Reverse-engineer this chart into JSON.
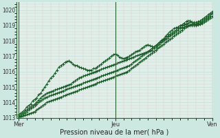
{
  "xlabel": "Pression niveau de la mer( hPa )",
  "bg_color": "#cce8e0",
  "plot_bg_color": "#dff0eb",
  "grid_color_minor": "#c8ddd8",
  "grid_color_major": "#aac8c0",
  "line_color": "#1a5c28",
  "marker_color": "#1a5c28",
  "axis_color": "#2a6030",
  "ylim": [
    1013,
    1020.5
  ],
  "yticks": [
    1013,
    1014,
    1015,
    1016,
    1017,
    1018,
    1019,
    1020
  ],
  "xtick_labels": [
    "Mer",
    "Jeu",
    "Ven"
  ],
  "xtick_positions": [
    0,
    48,
    96
  ],
  "vline_positions": [
    0,
    48,
    96
  ],
  "total_points": 97,
  "series": [
    [
      1013.2,
      1013.3,
      1013.4,
      1013.5,
      1013.7,
      1013.8,
      1013.9,
      1014.1,
      1014.2,
      1014.3,
      1014.5,
      1014.6,
      1014.8,
      1015.0,
      1015.2,
      1015.4,
      1015.6,
      1015.7,
      1015.9,
      1016.1,
      1016.3,
      1016.4,
      1016.5,
      1016.6,
      1016.65,
      1016.7,
      1016.6,
      1016.5,
      1016.4,
      1016.4,
      1016.3,
      1016.25,
      1016.2,
      1016.15,
      1016.1,
      1016.1,
      1016.1,
      1016.2,
      1016.2,
      1016.3,
      1016.4,
      1016.5,
      1016.6,
      1016.7,
      1016.8,
      1016.9,
      1017.0,
      1017.1,
      1017.15,
      1017.05,
      1016.95,
      1016.9,
      1016.85,
      1016.9,
      1016.95,
      1017.0,
      1017.1,
      1017.2,
      1017.3,
      1017.35,
      1017.4,
      1017.5,
      1017.6,
      1017.7,
      1017.75,
      1017.7,
      1017.65,
      1017.6,
      1017.7,
      1017.8,
      1017.9,
      1018.05,
      1018.15,
      1018.3,
      1018.45,
      1018.6,
      1018.7,
      1018.8,
      1018.85,
      1018.9,
      1019.0,
      1019.05,
      1019.15,
      1019.25,
      1019.3,
      1019.3,
      1019.2,
      1019.15,
      1019.1,
      1019.15,
      1019.1,
      1019.15,
      1019.2,
      1019.3,
      1019.4,
      1019.5,
      1019.6
    ],
    [
      1013.1,
      1013.2,
      1013.3,
      1013.4,
      1013.5,
      1013.6,
      1013.7,
      1013.8,
      1013.9,
      1014.0,
      1014.15,
      1014.3,
      1014.4,
      1014.5,
      1014.6,
      1014.65,
      1014.7,
      1014.75,
      1014.8,
      1014.85,
      1014.9,
      1014.95,
      1015.0,
      1015.05,
      1015.1,
      1015.15,
      1015.2,
      1015.3,
      1015.4,
      1015.5,
      1015.6,
      1015.65,
      1015.7,
      1015.75,
      1015.8,
      1015.85,
      1015.9,
      1015.95,
      1016.0,
      1016.05,
      1016.1,
      1016.15,
      1016.2,
      1016.25,
      1016.3,
      1016.35,
      1016.4,
      1016.45,
      1016.5,
      1016.55,
      1016.6,
      1016.65,
      1016.7,
      1016.75,
      1016.8,
      1016.85,
      1016.9,
      1016.95,
      1017.0,
      1017.05,
      1017.1,
      1017.15,
      1017.2,
      1017.25,
      1017.3,
      1017.35,
      1017.4,
      1017.5,
      1017.6,
      1017.7,
      1017.8,
      1017.9,
      1018.0,
      1018.1,
      1018.2,
      1018.3,
      1018.4,
      1018.5,
      1018.6,
      1018.7,
      1018.8,
      1018.85,
      1018.9,
      1018.95,
      1019.0,
      1019.05,
      1019.1,
      1019.1,
      1019.1,
      1019.15,
      1019.2,
      1019.3,
      1019.4,
      1019.5,
      1019.6,
      1019.7,
      1019.8
    ],
    [
      1013.0,
      1013.1,
      1013.2,
      1013.3,
      1013.4,
      1013.5,
      1013.6,
      1013.7,
      1013.8,
      1013.9,
      1014.0,
      1014.1,
      1014.2,
      1014.3,
      1014.35,
      1014.4,
      1014.45,
      1014.5,
      1014.55,
      1014.6,
      1014.65,
      1014.7,
      1014.75,
      1014.8,
      1014.85,
      1014.9,
      1014.95,
      1015.0,
      1015.05,
      1015.1,
      1015.15,
      1015.2,
      1015.25,
      1015.3,
      1015.35,
      1015.4,
      1015.45,
      1015.5,
      1015.55,
      1015.6,
      1015.65,
      1015.7,
      1015.75,
      1015.8,
      1015.85,
      1015.9,
      1015.95,
      1016.0,
      1016.05,
      1016.1,
      1016.15,
      1016.2,
      1016.25,
      1016.3,
      1016.35,
      1016.4,
      1016.5,
      1016.6,
      1016.7,
      1016.8,
      1016.9,
      1017.0,
      1017.1,
      1017.2,
      1017.3,
      1017.4,
      1017.5,
      1017.6,
      1017.7,
      1017.8,
      1017.9,
      1018.0,
      1018.1,
      1018.2,
      1018.3,
      1018.4,
      1018.5,
      1018.6,
      1018.7,
      1018.8,
      1018.9,
      1019.0,
      1019.05,
      1019.1,
      1019.15,
      1019.2,
      1019.2,
      1019.2,
      1019.2,
      1019.25,
      1019.3,
      1019.4,
      1019.5,
      1019.6,
      1019.7,
      1019.8,
      1019.9
    ],
    [
      1013.0,
      1013.05,
      1013.1,
      1013.15,
      1013.2,
      1013.25,
      1013.3,
      1013.35,
      1013.4,
      1013.5,
      1013.6,
      1013.7,
      1013.8,
      1013.9,
      1014.0,
      1014.05,
      1014.1,
      1014.15,
      1014.2,
      1014.25,
      1014.3,
      1014.35,
      1014.4,
      1014.45,
      1014.5,
      1014.55,
      1014.6,
      1014.65,
      1014.7,
      1014.75,
      1014.8,
      1014.85,
      1014.9,
      1014.95,
      1015.0,
      1015.05,
      1015.1,
      1015.15,
      1015.2,
      1015.25,
      1015.3,
      1015.35,
      1015.4,
      1015.45,
      1015.5,
      1015.55,
      1015.6,
      1015.65,
      1015.7,
      1015.75,
      1015.8,
      1015.85,
      1015.9,
      1015.95,
      1016.0,
      1016.1,
      1016.2,
      1016.3,
      1016.4,
      1016.5,
      1016.6,
      1016.7,
      1016.8,
      1016.9,
      1017.0,
      1017.1,
      1017.2,
      1017.3,
      1017.4,
      1017.5,
      1017.6,
      1017.7,
      1017.8,
      1017.9,
      1018.0,
      1018.1,
      1018.2,
      1018.3,
      1018.4,
      1018.5,
      1018.6,
      1018.7,
      1018.8,
      1018.9,
      1018.95,
      1019.0,
      1019.0,
      1019.0,
      1019.0,
      1019.05,
      1019.1,
      1019.2,
      1019.3,
      1019.4,
      1019.5,
      1019.6,
      1019.8
    ]
  ]
}
